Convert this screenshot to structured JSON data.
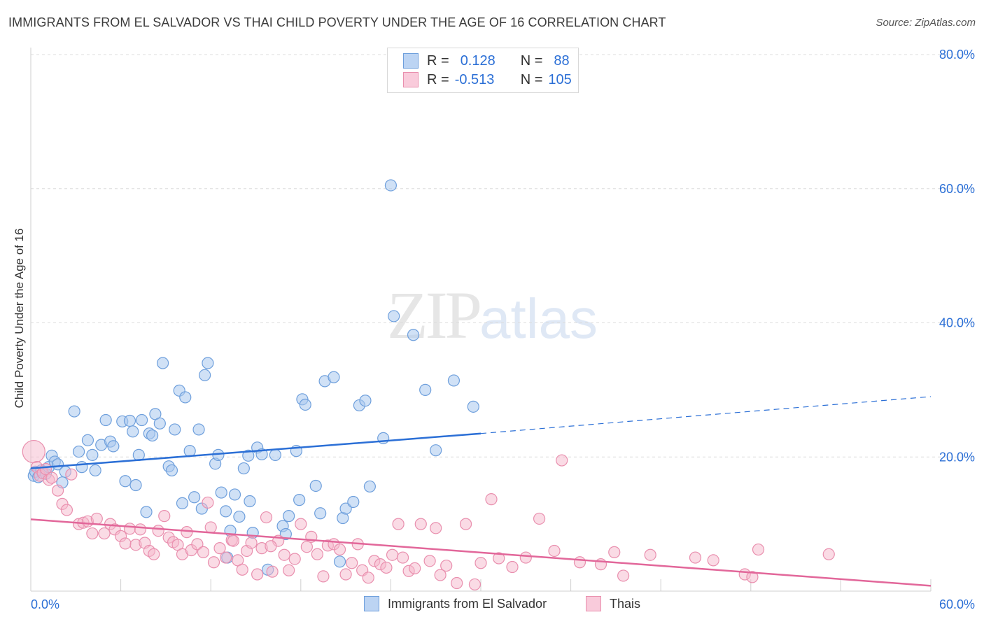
{
  "title": "IMMIGRANTS FROM EL SALVADOR VS THAI CHILD POVERTY UNDER THE AGE OF 16 CORRELATION CHART",
  "source": "Source: ZipAtlas.com",
  "watermark": {
    "zip": "ZIP",
    "atlas": "atlas"
  },
  "legend": {
    "rows": [
      {
        "r_label": "R =",
        "r_value": "0.128",
        "n_label": "N =",
        "n_value": "88"
      },
      {
        "r_label": "R =",
        "r_value": "-0.513",
        "n_label": "N =",
        "n_value": "105"
      }
    ]
  },
  "bottom_legend": [
    "Immigrants from El Salvador",
    "Thais"
  ],
  "colors": {
    "blue_fill": "#a9c8ef",
    "blue_stroke": "#6e9fdc",
    "blue_line": "#2b6fd6",
    "pink_fill": "#f5b8cc",
    "pink_stroke": "#e98fae",
    "pink_line": "#e2679a",
    "tick_label": "#2b6fd6",
    "grid": "#dcdcdc"
  },
  "chart_data": {
    "type": "scatter",
    "title": "IMMIGRANTS FROM EL SALVADOR VS THAI CHILD POVERTY UNDER THE AGE OF 16 CORRELATION CHART",
    "xlabel": "",
    "ylabel": "Child Poverty Under the Age of 16",
    "xlim": [
      0,
      60
    ],
    "ylim": [
      0,
      80
    ],
    "x_tick_labels": [
      "0.0%",
      "60.0%"
    ],
    "y_tick_labels": [
      "20.0%",
      "40.0%",
      "60.0%",
      "80.0%"
    ],
    "y_ticks": [
      20,
      40,
      60,
      80
    ],
    "grid": true,
    "legend_position": "top-center",
    "series": [
      {
        "name": "Immigrants from El Salvador",
        "trend": {
          "x0": 0,
          "y0": 18.3,
          "x1": 30,
          "y1": 23.5,
          "dashed_to_x": 60,
          "dashed_to_y": 29.0
        },
        "points": [
          [
            0.2,
            17.2,
            1
          ],
          [
            0.3,
            17.8,
            1
          ],
          [
            0.5,
            17.0,
            1
          ],
          [
            0.7,
            18.0,
            1
          ],
          [
            1.0,
            17.5,
            1
          ],
          [
            1.2,
            18.5,
            1
          ],
          [
            1.4,
            20.2,
            1
          ],
          [
            1.6,
            19.3,
            1
          ],
          [
            1.8,
            18.9,
            1
          ],
          [
            2.1,
            16.2,
            1
          ],
          [
            2.3,
            17.8,
            1
          ],
          [
            2.9,
            26.8,
            1
          ],
          [
            3.2,
            20.8,
            1
          ],
          [
            3.4,
            18.5,
            1
          ],
          [
            3.8,
            22.5,
            1
          ],
          [
            4.1,
            20.3,
            1
          ],
          [
            4.3,
            18.0,
            1
          ],
          [
            4.7,
            21.8,
            1
          ],
          [
            5.0,
            25.5,
            1
          ],
          [
            5.3,
            22.3,
            1
          ],
          [
            5.5,
            21.6,
            1
          ],
          [
            6.1,
            25.3,
            1
          ],
          [
            6.3,
            16.4,
            1
          ],
          [
            6.6,
            25.4,
            1
          ],
          [
            6.8,
            23.8,
            1
          ],
          [
            7.0,
            15.8,
            1
          ],
          [
            7.2,
            20.3,
            1
          ],
          [
            7.4,
            25.5,
            1
          ],
          [
            7.7,
            11.8,
            1
          ],
          [
            7.9,
            23.5,
            1
          ],
          [
            8.1,
            23.2,
            1
          ],
          [
            8.3,
            26.4,
            1
          ],
          [
            8.6,
            25.0,
            1
          ],
          [
            8.8,
            34.0,
            1
          ],
          [
            9.2,
            18.6,
            1
          ],
          [
            9.4,
            18.0,
            1
          ],
          [
            9.6,
            24.1,
            1
          ],
          [
            9.9,
            29.9,
            1
          ],
          [
            10.1,
            13.1,
            1
          ],
          [
            10.3,
            28.9,
            1
          ],
          [
            10.6,
            20.9,
            1
          ],
          [
            10.9,
            14.0,
            1
          ],
          [
            11.2,
            24.1,
            1
          ],
          [
            11.4,
            12.3,
            1
          ],
          [
            11.6,
            32.2,
            1
          ],
          [
            11.8,
            34.0,
            1
          ],
          [
            12.3,
            19.0,
            1
          ],
          [
            12.5,
            20.3,
            1
          ],
          [
            12.7,
            14.7,
            1
          ],
          [
            13.0,
            11.9,
            1
          ],
          [
            13.1,
            5.0,
            1
          ],
          [
            13.3,
            9.0,
            1
          ],
          [
            13.6,
            14.4,
            1
          ],
          [
            13.9,
            11.1,
            1
          ],
          [
            14.2,
            18.3,
            1
          ],
          [
            14.5,
            20.2,
            1
          ],
          [
            14.6,
            13.4,
            1
          ],
          [
            14.8,
            8.7,
            1
          ],
          [
            15.1,
            21.4,
            1
          ],
          [
            15.4,
            20.4,
            1
          ],
          [
            15.8,
            3.2,
            1
          ],
          [
            16.3,
            20.3,
            1
          ],
          [
            16.8,
            9.7,
            1
          ],
          [
            17.0,
            8.5,
            1
          ],
          [
            17.2,
            11.2,
            1
          ],
          [
            17.7,
            20.9,
            1
          ],
          [
            17.9,
            13.6,
            1
          ],
          [
            18.1,
            28.6,
            1
          ],
          [
            18.3,
            27.8,
            1
          ],
          [
            19.0,
            15.7,
            1
          ],
          [
            19.3,
            11.6,
            1
          ],
          [
            19.6,
            31.3,
            1
          ],
          [
            20.2,
            31.9,
            1
          ],
          [
            20.6,
            4.4,
            1
          ],
          [
            20.8,
            10.9,
            1
          ],
          [
            21.0,
            12.3,
            1
          ],
          [
            21.5,
            13.3,
            1
          ],
          [
            21.9,
            27.7,
            1
          ],
          [
            22.3,
            28.4,
            1
          ],
          [
            22.6,
            15.6,
            1
          ],
          [
            23.5,
            22.8,
            1
          ],
          [
            24.0,
            60.5,
            1
          ],
          [
            24.2,
            41.0,
            1
          ],
          [
            25.5,
            38.2,
            1
          ],
          [
            26.3,
            30.0,
            1
          ],
          [
            27.0,
            21.0,
            1
          ],
          [
            28.2,
            31.4,
            1
          ],
          [
            29.5,
            27.5,
            1
          ]
        ]
      },
      {
        "name": "Thais",
        "trend": {
          "x0": 0,
          "y0": 10.7,
          "x1": 60,
          "y1": 0.8
        },
        "points": [
          [
            0.2,
            20.8,
            2
          ],
          [
            0.4,
            18.5,
            1
          ],
          [
            0.6,
            17.2,
            1
          ],
          [
            0.8,
            17.6,
            1
          ],
          [
            1.0,
            18.2,
            1
          ],
          [
            1.2,
            16.6,
            1
          ],
          [
            1.4,
            16.9,
            1
          ],
          [
            1.8,
            15.0,
            1
          ],
          [
            2.1,
            13.0,
            1
          ],
          [
            2.4,
            12.1,
            1
          ],
          [
            2.7,
            17.4,
            1
          ],
          [
            3.2,
            10.0,
            1
          ],
          [
            3.5,
            10.2,
            1
          ],
          [
            3.8,
            10.4,
            1
          ],
          [
            4.1,
            8.6,
            1
          ],
          [
            4.4,
            10.8,
            1
          ],
          [
            4.9,
            8.6,
            1
          ],
          [
            5.3,
            10.0,
            1
          ],
          [
            5.6,
            9.2,
            1
          ],
          [
            6.0,
            8.2,
            1
          ],
          [
            6.3,
            7.1,
            1
          ],
          [
            6.6,
            9.3,
            1
          ],
          [
            7.0,
            6.9,
            1
          ],
          [
            7.3,
            9.2,
            1
          ],
          [
            7.6,
            7.2,
            1
          ],
          [
            7.9,
            6.0,
            1
          ],
          [
            8.2,
            5.5,
            1
          ],
          [
            8.5,
            9.0,
            1
          ],
          [
            8.9,
            11.2,
            1
          ],
          [
            9.2,
            8.0,
            1
          ],
          [
            9.5,
            7.3,
            1
          ],
          [
            9.8,
            6.9,
            1
          ],
          [
            10.1,
            5.5,
            1
          ],
          [
            10.4,
            8.8,
            1
          ],
          [
            10.7,
            6.1,
            1
          ],
          [
            11.1,
            7.0,
            1
          ],
          [
            11.5,
            5.8,
            1
          ],
          [
            11.8,
            13.2,
            1
          ],
          [
            12.2,
            4.3,
            1
          ],
          [
            12.6,
            6.4,
            1
          ],
          [
            13.0,
            5.0,
            1
          ],
          [
            13.4,
            7.6,
            1
          ],
          [
            13.8,
            4.6,
            1
          ],
          [
            14.1,
            3.2,
            1
          ],
          [
            14.4,
            6.0,
            1
          ],
          [
            14.7,
            7.2,
            1
          ],
          [
            15.1,
            2.5,
            1
          ],
          [
            15.4,
            6.4,
            1
          ],
          [
            15.7,
            11.0,
            1
          ],
          [
            16.1,
            2.9,
            1
          ],
          [
            16.5,
            7.5,
            1
          ],
          [
            16.9,
            5.4,
            1
          ],
          [
            17.2,
            3.1,
            1
          ],
          [
            17.6,
            4.8,
            1
          ],
          [
            18.0,
            10.0,
            1
          ],
          [
            18.4,
            6.6,
            1
          ],
          [
            18.7,
            8.1,
            1
          ],
          [
            19.1,
            5.5,
            1
          ],
          [
            19.5,
            2.2,
            1
          ],
          [
            19.8,
            6.8,
            1
          ],
          [
            20.2,
            7.0,
            1
          ],
          [
            20.6,
            6.2,
            1
          ],
          [
            21.0,
            2.5,
            1
          ],
          [
            21.4,
            4.2,
            1
          ],
          [
            21.8,
            7.0,
            1
          ],
          [
            22.1,
            3.1,
            1
          ],
          [
            22.5,
            2.0,
            1
          ],
          [
            22.9,
            4.5,
            1
          ],
          [
            23.3,
            4.0,
            1
          ],
          [
            23.7,
            3.5,
            1
          ],
          [
            24.1,
            5.4,
            1
          ],
          [
            24.5,
            10.0,
            1
          ],
          [
            24.8,
            5.0,
            1
          ],
          [
            25.2,
            3.0,
            1
          ],
          [
            25.6,
            3.4,
            1
          ],
          [
            26.0,
            10.0,
            1
          ],
          [
            26.6,
            4.5,
            1
          ],
          [
            27.0,
            9.4,
            1
          ],
          [
            27.3,
            2.4,
            1
          ],
          [
            27.7,
            3.8,
            1
          ],
          [
            28.4,
            1.2,
            1
          ],
          [
            29.0,
            10.0,
            1
          ],
          [
            29.6,
            1.0,
            1
          ],
          [
            30.0,
            4.2,
            1
          ],
          [
            30.7,
            13.7,
            1
          ],
          [
            31.2,
            4.9,
            1
          ],
          [
            32.1,
            3.6,
            1
          ],
          [
            33.0,
            5.0,
            1
          ],
          [
            33.9,
            10.8,
            1
          ],
          [
            34.9,
            6.0,
            1
          ],
          [
            35.4,
            19.5,
            1
          ],
          [
            36.6,
            4.3,
            1
          ],
          [
            38.0,
            4.0,
            1
          ],
          [
            38.9,
            5.8,
            1
          ],
          [
            39.5,
            2.3,
            1
          ],
          [
            41.3,
            5.4,
            1
          ],
          [
            44.3,
            5.0,
            1
          ],
          [
            45.5,
            4.6,
            1
          ],
          [
            47.6,
            2.5,
            1
          ],
          [
            48.1,
            2.1,
            1
          ],
          [
            48.5,
            6.2,
            1
          ],
          [
            53.2,
            5.5,
            1
          ],
          [
            13.5,
            7.5,
            1
          ],
          [
            16.0,
            6.7,
            1
          ],
          [
            12.0,
            9.5,
            1
          ]
        ]
      }
    ]
  }
}
